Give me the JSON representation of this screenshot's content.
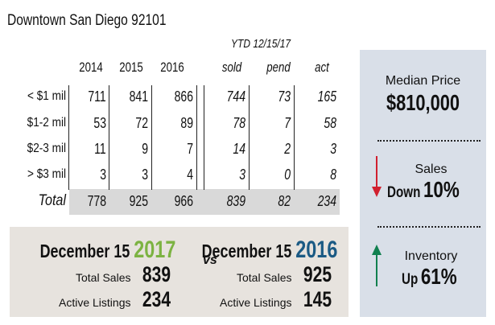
{
  "title": "Downtown San Diego 92101",
  "ytd_label": "YTD 12/15/17",
  "table": {
    "columns": [
      "2014",
      "2015",
      "2016",
      "sold",
      "pend",
      "act"
    ],
    "rows": [
      {
        "label": "< $1 mil",
        "values": [
          "711",
          "841",
          "866",
          "744",
          "73",
          "165"
        ]
      },
      {
        "label": "$1-2 mil",
        "values": [
          "53",
          "72",
          "89",
          "78",
          "7",
          "58"
        ]
      },
      {
        "label": "$2-3 mil",
        "values": [
          "11",
          "9",
          "7",
          "14",
          "2",
          "3"
        ]
      },
      {
        "label": "> $3 mil",
        "values": [
          "3",
          "3",
          "4",
          "3",
          "0",
          "8"
        ]
      }
    ],
    "total": {
      "label": "Total",
      "values": [
        "778",
        "925",
        "966",
        "839",
        "82",
        "234"
      ]
    }
  },
  "summary": {
    "median_label": "Median Price",
    "median_value": "$810,000",
    "sales_label": "Sales",
    "sales_direction": "Down",
    "sales_change": "10%",
    "inventory_label": "Inventory",
    "inventory_direction": "Up",
    "inventory_change": "61%",
    "down_color": "#d1202f",
    "up_color": "#11804f"
  },
  "comparison": {
    "vs": "vs",
    "left": {
      "date": "December 15",
      "year": "2017",
      "year_color": "#7cb342",
      "sales_label": "Total Sales",
      "sales": "839",
      "listings_label": "Active Listings",
      "listings": "234"
    },
    "right": {
      "date": "December 15",
      "year": "2016",
      "year_color": "#1b5a84",
      "sales_label": "Total Sales",
      "sales": "925",
      "listings_label": "Active Listings",
      "listings": "145"
    }
  }
}
